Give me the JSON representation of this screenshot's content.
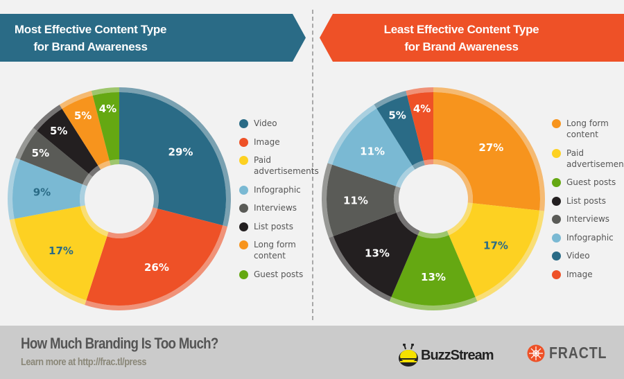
{
  "colors": {
    "Video": "#2a6b86",
    "Image": "#ee5127",
    "Paid advertisements": "#fdd122",
    "Infographic": "#7ab9d3",
    "Interviews": "#5a5b57",
    "List posts": "#231f20",
    "Long form content": "#f7941d",
    "Guest posts": "#65a812"
  },
  "chart_data": [
    {
      "type": "pie",
      "variant": "donut",
      "title": "Most Effective Content Type for Brand Awareness",
      "legend": "right",
      "categories": [
        "Video",
        "Image",
        "Paid advertisements",
        "Infographic",
        "Interviews",
        "List posts",
        "Long form content",
        "Guest posts"
      ],
      "values": [
        29,
        26,
        17,
        9,
        5,
        5,
        5,
        4
      ],
      "labels": [
        "29%",
        "26%",
        "17%",
        "9%",
        "5%",
        "5%",
        "5%",
        "4%"
      ],
      "legend_lines": [
        [
          "Video"
        ],
        [
          "Image"
        ],
        [
          "Paid",
          "advertisements"
        ],
        [
          "Infographic"
        ],
        [
          "Interviews"
        ],
        [
          "List posts"
        ],
        [
          "Long form",
          "content"
        ],
        [
          "Guest posts"
        ]
      ]
    },
    {
      "type": "pie",
      "variant": "donut",
      "title": "Least Effective Content Type for Brand Awareness",
      "legend": "right",
      "categories": [
        "Long form content",
        "Paid advertisements",
        "Guest posts",
        "List posts",
        "Interviews",
        "Infographic",
        "Video",
        "Image"
      ],
      "values": [
        27,
        17,
        13,
        13,
        11,
        11,
        5,
        4
      ],
      "labels": [
        "27%",
        "17%",
        "13%",
        "13%",
        "11%",
        "11%",
        "5%",
        "4%"
      ],
      "legend_lines": [
        [
          "Long form",
          "content"
        ],
        [
          "Paid",
          "advertisements"
        ],
        [
          "Guest posts"
        ],
        [
          "List posts"
        ],
        [
          "Interviews"
        ],
        [
          "Infographic"
        ],
        [
          "Video"
        ],
        [
          "Image"
        ]
      ]
    }
  ],
  "header": {
    "left_line1": "Most Effective Content Type",
    "left_line2": "for Brand Awareness",
    "right_line1": "Least Effective Content Type",
    "right_line2": "for Brand Awareness"
  },
  "footer": {
    "title": "How Much Branding Is Too Much?",
    "subtitle": "Learn more at http://frac.tl/press",
    "logo1": "BuzzStream",
    "logo2": "FRACTL"
  }
}
